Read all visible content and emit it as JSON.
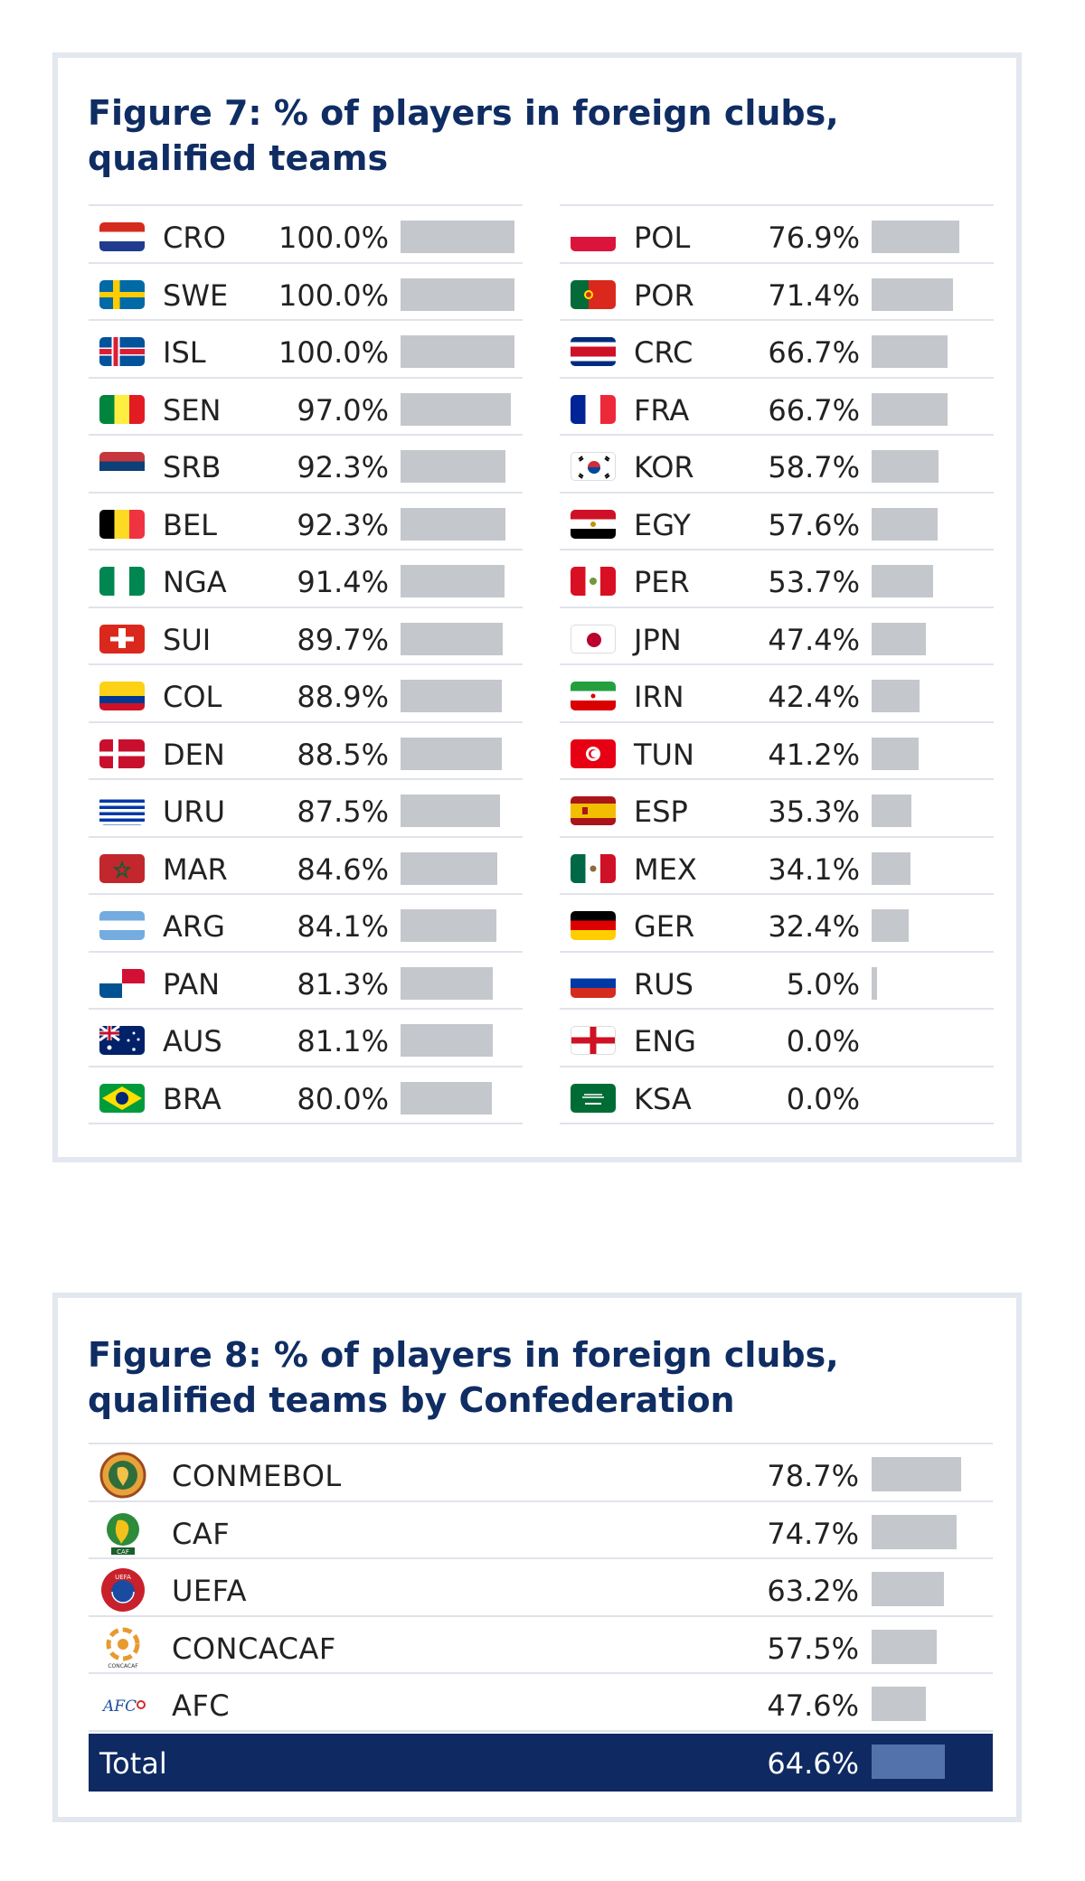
{
  "figure7": {
    "title": "Figure 7: % of players in foreign clubs, qualified teams"
  },
  "figure8": {
    "title": "Figure 8: % of players in foreign clubs, qualified teams by Confederation",
    "total_label": "Total",
    "total_value_label": "64.6%"
  },
  "chart_data": [
    {
      "type": "bar",
      "orientation": "horizontal",
      "title": "Figure 7: % of players in foreign clubs, qualified teams",
      "xlim": [
        0,
        100
      ],
      "categories": [
        "CRO",
        "SWE",
        "ISL",
        "SEN",
        "SRB",
        "BEL",
        "NGA",
        "SUI",
        "COL",
        "DEN",
        "URU",
        "MAR",
        "ARG",
        "PAN",
        "AUS",
        "BRA",
        "POL",
        "POR",
        "CRC",
        "FRA",
        "KOR",
        "EGY",
        "PER",
        "JPN",
        "IRN",
        "TUN",
        "ESP",
        "MEX",
        "GER",
        "RUS",
        "ENG",
        "KSA"
      ],
      "values": [
        100.0,
        100.0,
        100.0,
        97.0,
        92.3,
        92.3,
        91.4,
        89.7,
        88.9,
        88.5,
        87.5,
        84.6,
        84.1,
        81.3,
        81.1,
        80.0,
        76.9,
        71.4,
        66.7,
        66.7,
        58.7,
        57.6,
        53.7,
        47.4,
        42.4,
        41.2,
        35.3,
        34.1,
        32.4,
        5.0,
        0.0,
        0.0
      ],
      "labels": [
        "100.0%",
        "100.0%",
        "100.0%",
        "97.0%",
        "92.3%",
        "92.3%",
        "91.4%",
        "89.7%",
        "88.9%",
        "88.5%",
        "87.5%",
        "84.6%",
        "84.1%",
        "81.3%",
        "81.1%",
        "80.0%",
        "76.9%",
        "71.4%",
        "66.7%",
        "66.7%",
        "58.7%",
        "57.6%",
        "53.7%",
        "47.4%",
        "42.4%",
        "41.2%",
        "35.3%",
        "34.1%",
        "32.4%",
        "5.0%",
        "0.0%",
        "0.0%"
      ],
      "flags": [
        "flag-croatia",
        "flag-sweden",
        "flag-iceland",
        "flag-senegal",
        "flag-serbia",
        "flag-belgium",
        "flag-nigeria",
        "flag-switzerland",
        "flag-colombia",
        "flag-denmark",
        "flag-uruguay",
        "flag-morocco",
        "flag-argentina",
        "flag-panama",
        "flag-australia",
        "flag-brazil",
        "flag-poland",
        "flag-portugal",
        "flag-costa-rica",
        "flag-france",
        "flag-korea",
        "flag-egypt",
        "flag-peru",
        "flag-japan",
        "flag-iran",
        "flag-tunisia",
        "flag-spain",
        "flag-mexico",
        "flag-germany",
        "flag-russia",
        "flag-england",
        "flag-saudi-arabia"
      ],
      "bar_color": "#c4c7cc"
    },
    {
      "type": "bar",
      "orientation": "horizontal",
      "title": "Figure 8: % of players in foreign clubs, qualified teams by Confederation",
      "xlim": [
        0,
        100
      ],
      "categories": [
        "CONMEBOL",
        "CAF",
        "UEFA",
        "CONCACAF",
        "AFC",
        "Total"
      ],
      "values": [
        78.7,
        74.7,
        63.2,
        57.5,
        47.6,
        64.6
      ],
      "labels": [
        "78.7%",
        "74.7%",
        "63.2%",
        "57.5%",
        "47.6%",
        "64.6%"
      ],
      "logos": [
        "conmebol-logo",
        "caf-logo",
        "uefa-logo",
        "concacaf-logo",
        "afc-logo"
      ],
      "bar_color": "#c4c7cc",
      "total_row_color": "#0f2a62",
      "total_bar_color": "#5372ab"
    }
  ]
}
